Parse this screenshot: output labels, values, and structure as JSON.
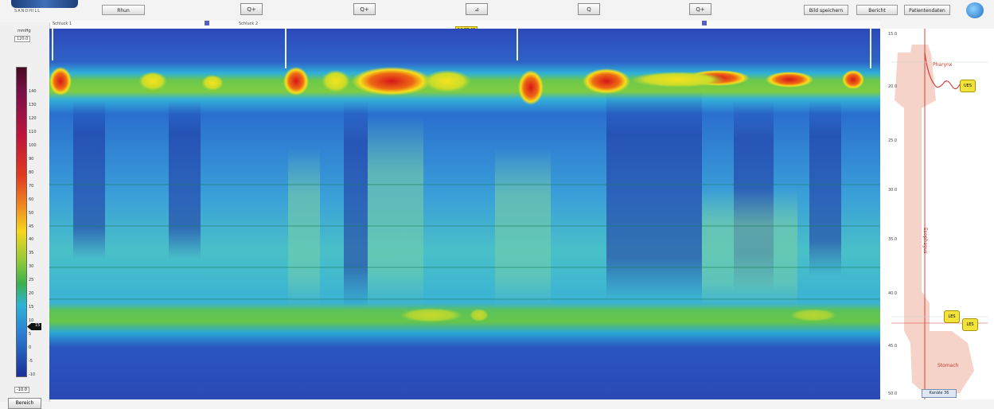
{
  "toolbar": {
    "logo_sub": "SANDHILL",
    "left_button": "Rhun",
    "zoom_buttons": [
      "Q+",
      "Q+",
      "⊿",
      "Q",
      "Q+"
    ],
    "right_buttons": [
      "Bild speichern",
      "Bericht",
      "Patientendaten"
    ]
  },
  "ruler": {
    "left_label": "Schluck 1",
    "mid_label": "Schluck 2",
    "marker": "14:27:43"
  },
  "legend": {
    "title": "mmHg",
    "unit": "120.0",
    "ticks": [
      "140",
      "130",
      "120",
      "110",
      "100",
      "90",
      "80",
      "70",
      "60",
      "50",
      "45",
      "40",
      "35",
      "30",
      "25",
      "20",
      "15",
      "10",
      "5",
      "0",
      "-5",
      "-10"
    ],
    "slider_value": "15",
    "min_value": "-10.0",
    "reset_label": "Bereich"
  },
  "anatomy": {
    "pharynx_label": "Pharynx",
    "esophagus_label": "Esophagus",
    "stomach_label": "Stomach",
    "scale_labels": [
      "15.0",
      "20.0",
      "25.0",
      "30.0",
      "35.0",
      "40.0",
      "45.0",
      "50.0"
    ],
    "badges": [
      "UES",
      "LES",
      "LES"
    ],
    "bottom_badge": "Kanäle 36"
  },
  "colors": {
    "high": "#d81c1c",
    "mid": "#f5e21a",
    "low": "#3aa0dc",
    "base": "#2a3fa6"
  }
}
